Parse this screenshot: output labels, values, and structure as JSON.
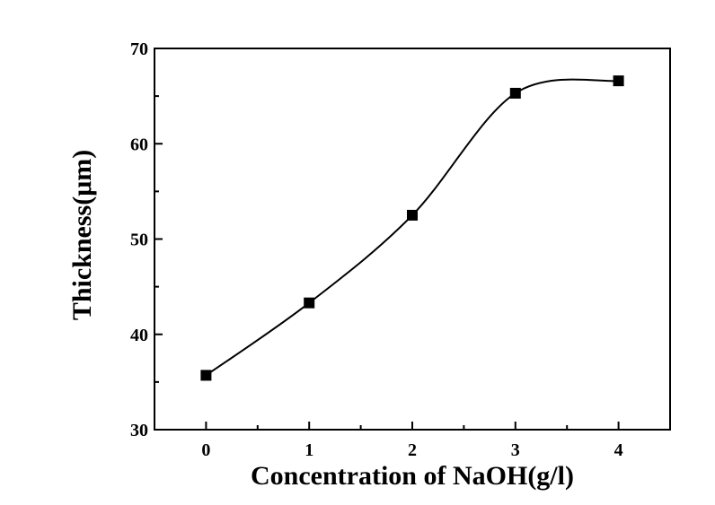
{
  "chart_data": {
    "type": "scatter",
    "xlabel": "Concentration of NaOH(g/l)",
    "ylabel": "Thickness(μm)",
    "xlim": [
      -0.5,
      4.5
    ],
    "ylim": [
      30,
      70
    ],
    "x_ticks": [
      "0",
      "1",
      "2",
      "3",
      "4"
    ],
    "y_ticks": [
      "30",
      "40",
      "50",
      "60",
      "70"
    ],
    "grid": false,
    "legend": "none",
    "series": [
      {
        "marker": "filled-square",
        "line": "smooth-fit",
        "x": [
          0,
          1,
          2,
          3,
          4
        ],
        "y": [
          35.7,
          43.3,
          52.5,
          65.3,
          66.6
        ]
      }
    ],
    "colors": {
      "marker": "#000000",
      "line": "#000000",
      "axes": "#000000"
    }
  }
}
